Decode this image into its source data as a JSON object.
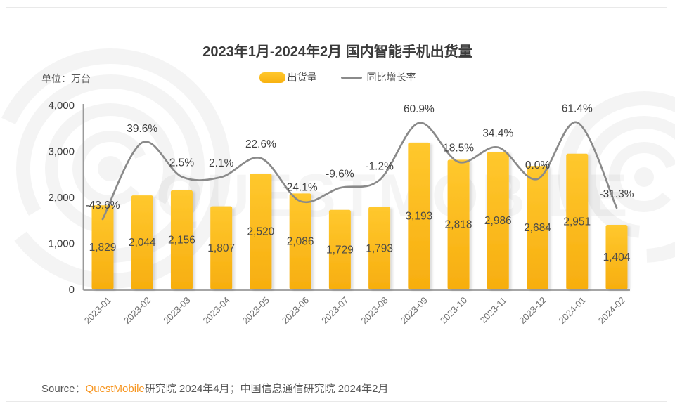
{
  "title": "2023年1月-2024年2月 国内智能手机出货量",
  "unit_label": "单位：万台",
  "legend": {
    "bar_label": "出货量",
    "line_label": "同比增长率"
  },
  "watermark_text": "QUESTMOBILE",
  "source": {
    "prefix": "Source：",
    "brand": "QuestMobile",
    "suffix": "研究院 2024年4月；中国信息通信研究院 2024年2月"
  },
  "colors": {
    "bar_top": "#ffc82e",
    "bar_bottom": "#f7ae0f",
    "line": "#8a8a8a",
    "axis": "#9a9a9a",
    "value_label": "#4a4a4a",
    "pct_label": "#404040",
    "y_tick": "#3c3c3c",
    "x_tick": "#707070",
    "brand_orange": "#f7941d",
    "watermark": "rgba(0,0,0,0.045)"
  },
  "chart_data": {
    "type": "bar+line",
    "title": "2023年1月-2024年2月 国内智能手机出货量",
    "ylabel": "万台",
    "categories": [
      "2023-01",
      "2023-02",
      "2023-03",
      "2023-04",
      "2023-05",
      "2023-06",
      "2023-07",
      "2023-08",
      "2023-09",
      "2023-10",
      "2023-11",
      "2023-12",
      "2024-01",
      "2024-02"
    ],
    "series": [
      {
        "name": "出货量",
        "type": "bar",
        "unit": "万台",
        "values": [
          1829,
          2044,
          2156,
          1807,
          2520,
          2086,
          1729,
          1793,
          3193,
          2818,
          2986,
          2684,
          2951,
          1404
        ]
      },
      {
        "name": "同比增长率",
        "type": "line",
        "unit": "%",
        "values": [
          -43.6,
          39.6,
          2.5,
          2.1,
          22.6,
          -24.1,
          -9.6,
          -1.2,
          60.9,
          18.5,
          34.4,
          0.0,
          61.4,
          -31.3
        ]
      }
    ],
    "y_axis": {
      "min": 0,
      "max": 4000,
      "ticks": [
        0,
        1000,
        2000,
        3000,
        4000
      ]
    },
    "grid": false,
    "legend_position": "top-center"
  }
}
